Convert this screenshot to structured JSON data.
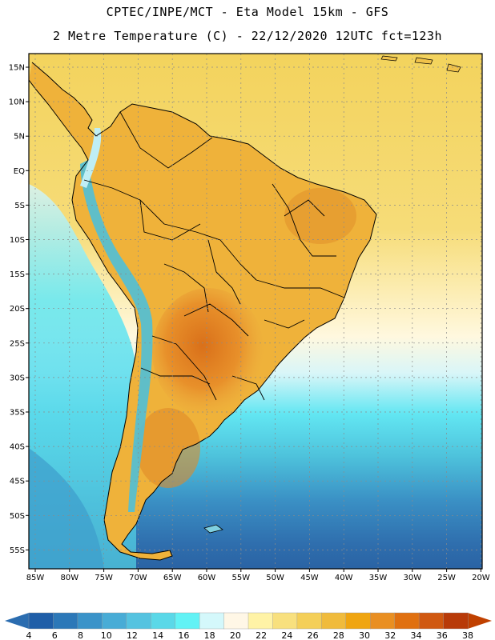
{
  "header": {
    "line1": "CPTEC/INPE/MCT -  Eta Model 15km - GFS",
    "line2": "2 Metre Temperature (C) - 22/12/2020 12UTC fct=123h"
  },
  "map": {
    "region": "South America",
    "lat_labels": [
      "15N",
      "10N",
      "5N",
      "EQ",
      "5S",
      "10S",
      "15S",
      "20S",
      "25S",
      "30S",
      "35S",
      "40S",
      "45S",
      "50S",
      "55S"
    ],
    "lon_labels": [
      "85W",
      "80W",
      "75W",
      "70W",
      "65W",
      "60W",
      "55W",
      "50W",
      "45W",
      "40W",
      "35W",
      "30W",
      "25W",
      "20W"
    ]
  },
  "colors": {
    "ocean_north": "#f3d35d",
    "ocean_south": "#2f6fae",
    "land_hot": "#e98f22",
    "land_warm": "#f0b63c",
    "andes_cold": "#5fd2e8",
    "border": "#000000"
  },
  "colorbar": {
    "labels": [
      "4",
      "6",
      "8",
      "10",
      "12",
      "14",
      "16",
      "18",
      "20",
      "22",
      "24",
      "26",
      "28",
      "30",
      "32",
      "34",
      "36",
      "38"
    ],
    "colors": [
      "#1f5ea8",
      "#2c78b8",
      "#3a93c9",
      "#48acd6",
      "#55c3e0",
      "#5ad8e8",
      "#62f2f5",
      "#d4f8fb",
      "#fff7e6",
      "#fff3a6",
      "#f8e07e",
      "#f4cf58",
      "#f0bb3c",
      "#f0a510",
      "#e98f22",
      "#e07010",
      "#d05810",
      "#b83a08",
      "#c04000"
    ],
    "end_colors": [
      "#2b6db0",
      "#c04000"
    ]
  }
}
